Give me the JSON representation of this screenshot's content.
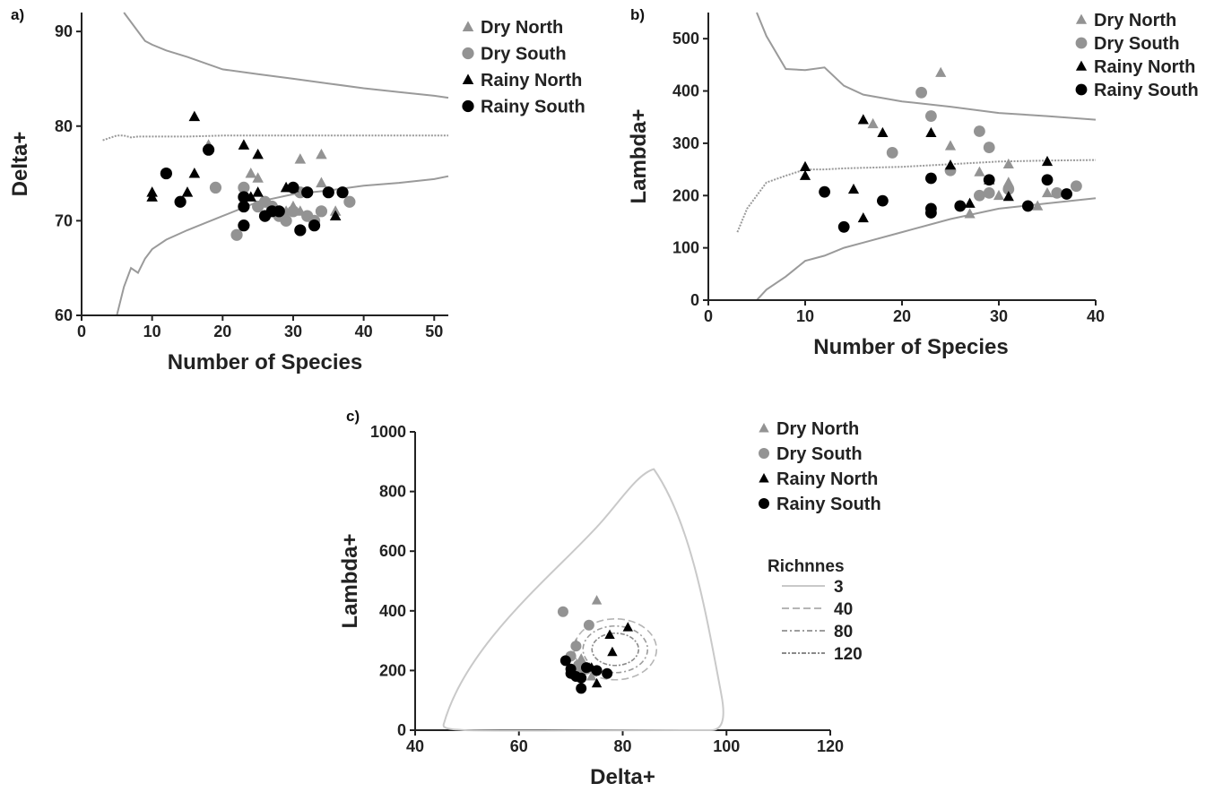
{
  "colors": {
    "dry": "#939393",
    "rainy": "#000000",
    "line": "#9a9a9a",
    "axis": "#222222",
    "text": "#222222"
  },
  "chart_data": [
    {
      "panel": "a)",
      "type": "scatter",
      "xlabel": "Number of Species",
      "ylabel": "Delta+",
      "xlim": [
        0,
        52
      ],
      "ylim": [
        60,
        92
      ],
      "xticks": [
        "0",
        "10",
        "20",
        "30",
        "40",
        "50"
      ],
      "yticks": [
        "60",
        "70",
        "80",
        "90"
      ],
      "legend": {
        "placement": "top-right",
        "entries": [
          "Dry North",
          "Dry South",
          "Rainy North",
          "Rainy South"
        ]
      },
      "series": [
        {
          "name": "Dry North",
          "marker": "triangle",
          "x": [
            18,
            24,
            25,
            29,
            30,
            31,
            31,
            34,
            34,
            36
          ],
          "y": [
            78,
            75,
            74.5,
            71,
            71.5,
            76.5,
            71,
            77,
            74,
            71
          ]
        },
        {
          "name": "Dry South",
          "marker": "circle",
          "x": [
            19,
            22,
            23,
            25,
            26,
            27,
            28,
            29,
            30,
            31,
            32,
            33,
            34,
            38
          ],
          "y": [
            73.5,
            68.5,
            73.5,
            71.5,
            72,
            71.5,
            70.5,
            70,
            71,
            73,
            70.5,
            70,
            71,
            72
          ]
        },
        {
          "name": "Rainy North",
          "marker": "triangle",
          "x": [
            10,
            10,
            15,
            16,
            16,
            23,
            24,
            25,
            25,
            29,
            30,
            36
          ],
          "y": [
            73,
            72.5,
            73,
            81,
            75,
            78,
            72.5,
            77,
            73,
            73.5,
            73.5,
            70.5
          ]
        },
        {
          "name": "Rainy South",
          "marker": "circle",
          "x": [
            12,
            14,
            18,
            23,
            23,
            23,
            26,
            27,
            28,
            30,
            31,
            32,
            33,
            35,
            37
          ],
          "y": [
            75,
            72,
            77.5,
            72.5,
            71.5,
            69.5,
            70.5,
            71,
            71,
            73.5,
            69,
            73,
            69.5,
            73,
            73
          ]
        }
      ],
      "funnel": {
        "x": [
          3,
          5,
          6,
          7,
          8,
          9,
          10,
          12,
          15,
          20,
          25,
          30,
          35,
          40,
          45,
          50,
          52
        ],
        "upper": [
          null,
          null,
          92,
          91,
          90,
          89,
          88.6,
          88,
          87.3,
          86,
          85.5,
          85,
          84.5,
          84,
          83.6,
          83.2,
          83
        ],
        "mean": [
          78.5,
          79,
          79,
          78.8,
          78.9,
          78.9,
          78.9,
          78.9,
          78.9,
          79,
          79,
          79,
          79,
          79,
          79,
          79,
          79
        ],
        "lower": [
          null,
          60,
          63,
          65,
          64.5,
          66,
          67,
          68,
          69,
          70.5,
          72,
          72.8,
          73.2,
          73.7,
          74,
          74.4,
          74.7
        ]
      }
    },
    {
      "panel": "b)",
      "type": "scatter",
      "xlabel": "Number of Species",
      "ylabel": "Lambda+",
      "xlim": [
        0,
        40
      ],
      "ylim": [
        0,
        550
      ],
      "xticks": [
        "0",
        "10",
        "20",
        "30",
        "40"
      ],
      "yticks": [
        "0",
        "100",
        "200",
        "300",
        "400",
        "500"
      ],
      "legend": {
        "placement": "top-right",
        "entries": [
          "Dry North",
          "Dry South",
          "Rainy North",
          "Rainy South"
        ]
      },
      "series": [
        {
          "name": "Dry North",
          "marker": "triangle",
          "x": [
            17,
            24,
            25,
            27,
            28,
            30,
            31,
            31,
            34,
            35,
            36
          ],
          "y": [
            337,
            435,
            295,
            165,
            245,
            200,
            260,
            225,
            180,
            205,
            205
          ]
        },
        {
          "name": "Dry South",
          "marker": "circle",
          "x": [
            19,
            22,
            23,
            25,
            28,
            28,
            29,
            29,
            31,
            36,
            38
          ],
          "y": [
            282,
            397,
            352,
            248,
            323,
            200,
            292,
            205,
            212,
            205,
            218
          ]
        },
        {
          "name": "Rainy North",
          "marker": "triangle",
          "x": [
            10,
            10,
            15,
            16,
            16,
            18,
            23,
            25,
            27,
            29,
            31,
            35
          ],
          "y": [
            255,
            238,
            212,
            157,
            345,
            320,
            320,
            258,
            185,
            230,
            198,
            265
          ]
        },
        {
          "name": "Rainy South",
          "marker": "circle",
          "x": [
            12,
            14,
            18,
            23,
            23,
            23,
            26,
            29,
            33,
            35,
            37
          ],
          "y": [
            207,
            140,
            190,
            233,
            175,
            167,
            180,
            230,
            180,
            230,
            203
          ]
        }
      ],
      "funnel": {
        "x": [
          3,
          4,
          5,
          6,
          8,
          10,
          12,
          14,
          16,
          20,
          25,
          30,
          35,
          40
        ],
        "upper": [
          null,
          null,
          550,
          505,
          442,
          440,
          445,
          410,
          393,
          380,
          370,
          358,
          352,
          345
        ],
        "mean": [
          130,
          175,
          200,
          225,
          238,
          250,
          250,
          252,
          253,
          255,
          260,
          265,
          267,
          268
        ],
        "lower": [
          0,
          0,
          0,
          20,
          45,
          75,
          85,
          100,
          110,
          130,
          155,
          175,
          185,
          195
        ]
      }
    },
    {
      "panel": "c)",
      "type": "scatter",
      "xlabel": "Delta+",
      "ylabel": "Lambda+",
      "xlim": [
        40,
        120
      ],
      "ylim": [
        0,
        1000
      ],
      "xticks": [
        "40",
        "60",
        "80",
        "100",
        "120"
      ],
      "yticks": [
        "0",
        "200",
        "400",
        "600",
        "800",
        "1000"
      ],
      "legend": {
        "placement": "top-right",
        "entries": [
          "Dry North",
          "Dry South",
          "Rainy North",
          "Rainy South"
        ]
      },
      "richness_title": "Richnnes",
      "richness_levels": [
        "3",
        "40",
        "80",
        "120"
      ],
      "series": [
        {
          "name": "Dry North",
          "marker": "triangle",
          "x": [
            75,
            71,
            72,
            73,
            74,
            72
          ],
          "y": [
            435,
            290,
            240,
            210,
            180,
            200
          ]
        },
        {
          "name": "Dry South",
          "marker": "circle",
          "x": [
            68.5,
            73.5,
            71,
            70,
            72,
            73,
            71.5,
            70.5
          ],
          "y": [
            397,
            352,
            282,
            248,
            220,
            205,
            218,
            200
          ]
        },
        {
          "name": "Rainy North",
          "marker": "triangle",
          "x": [
            81,
            77.5,
            78,
            74,
            75
          ],
          "y": [
            345,
            320,
            262,
            210,
            157
          ]
        },
        {
          "name": "Rainy South",
          "marker": "circle",
          "x": [
            69,
            70,
            71,
            72,
            73,
            75,
            77,
            72,
            70
          ],
          "y": [
            233,
            190,
            180,
            140,
            210,
            200,
            190,
            175,
            205
          ]
        }
      ]
    }
  ]
}
